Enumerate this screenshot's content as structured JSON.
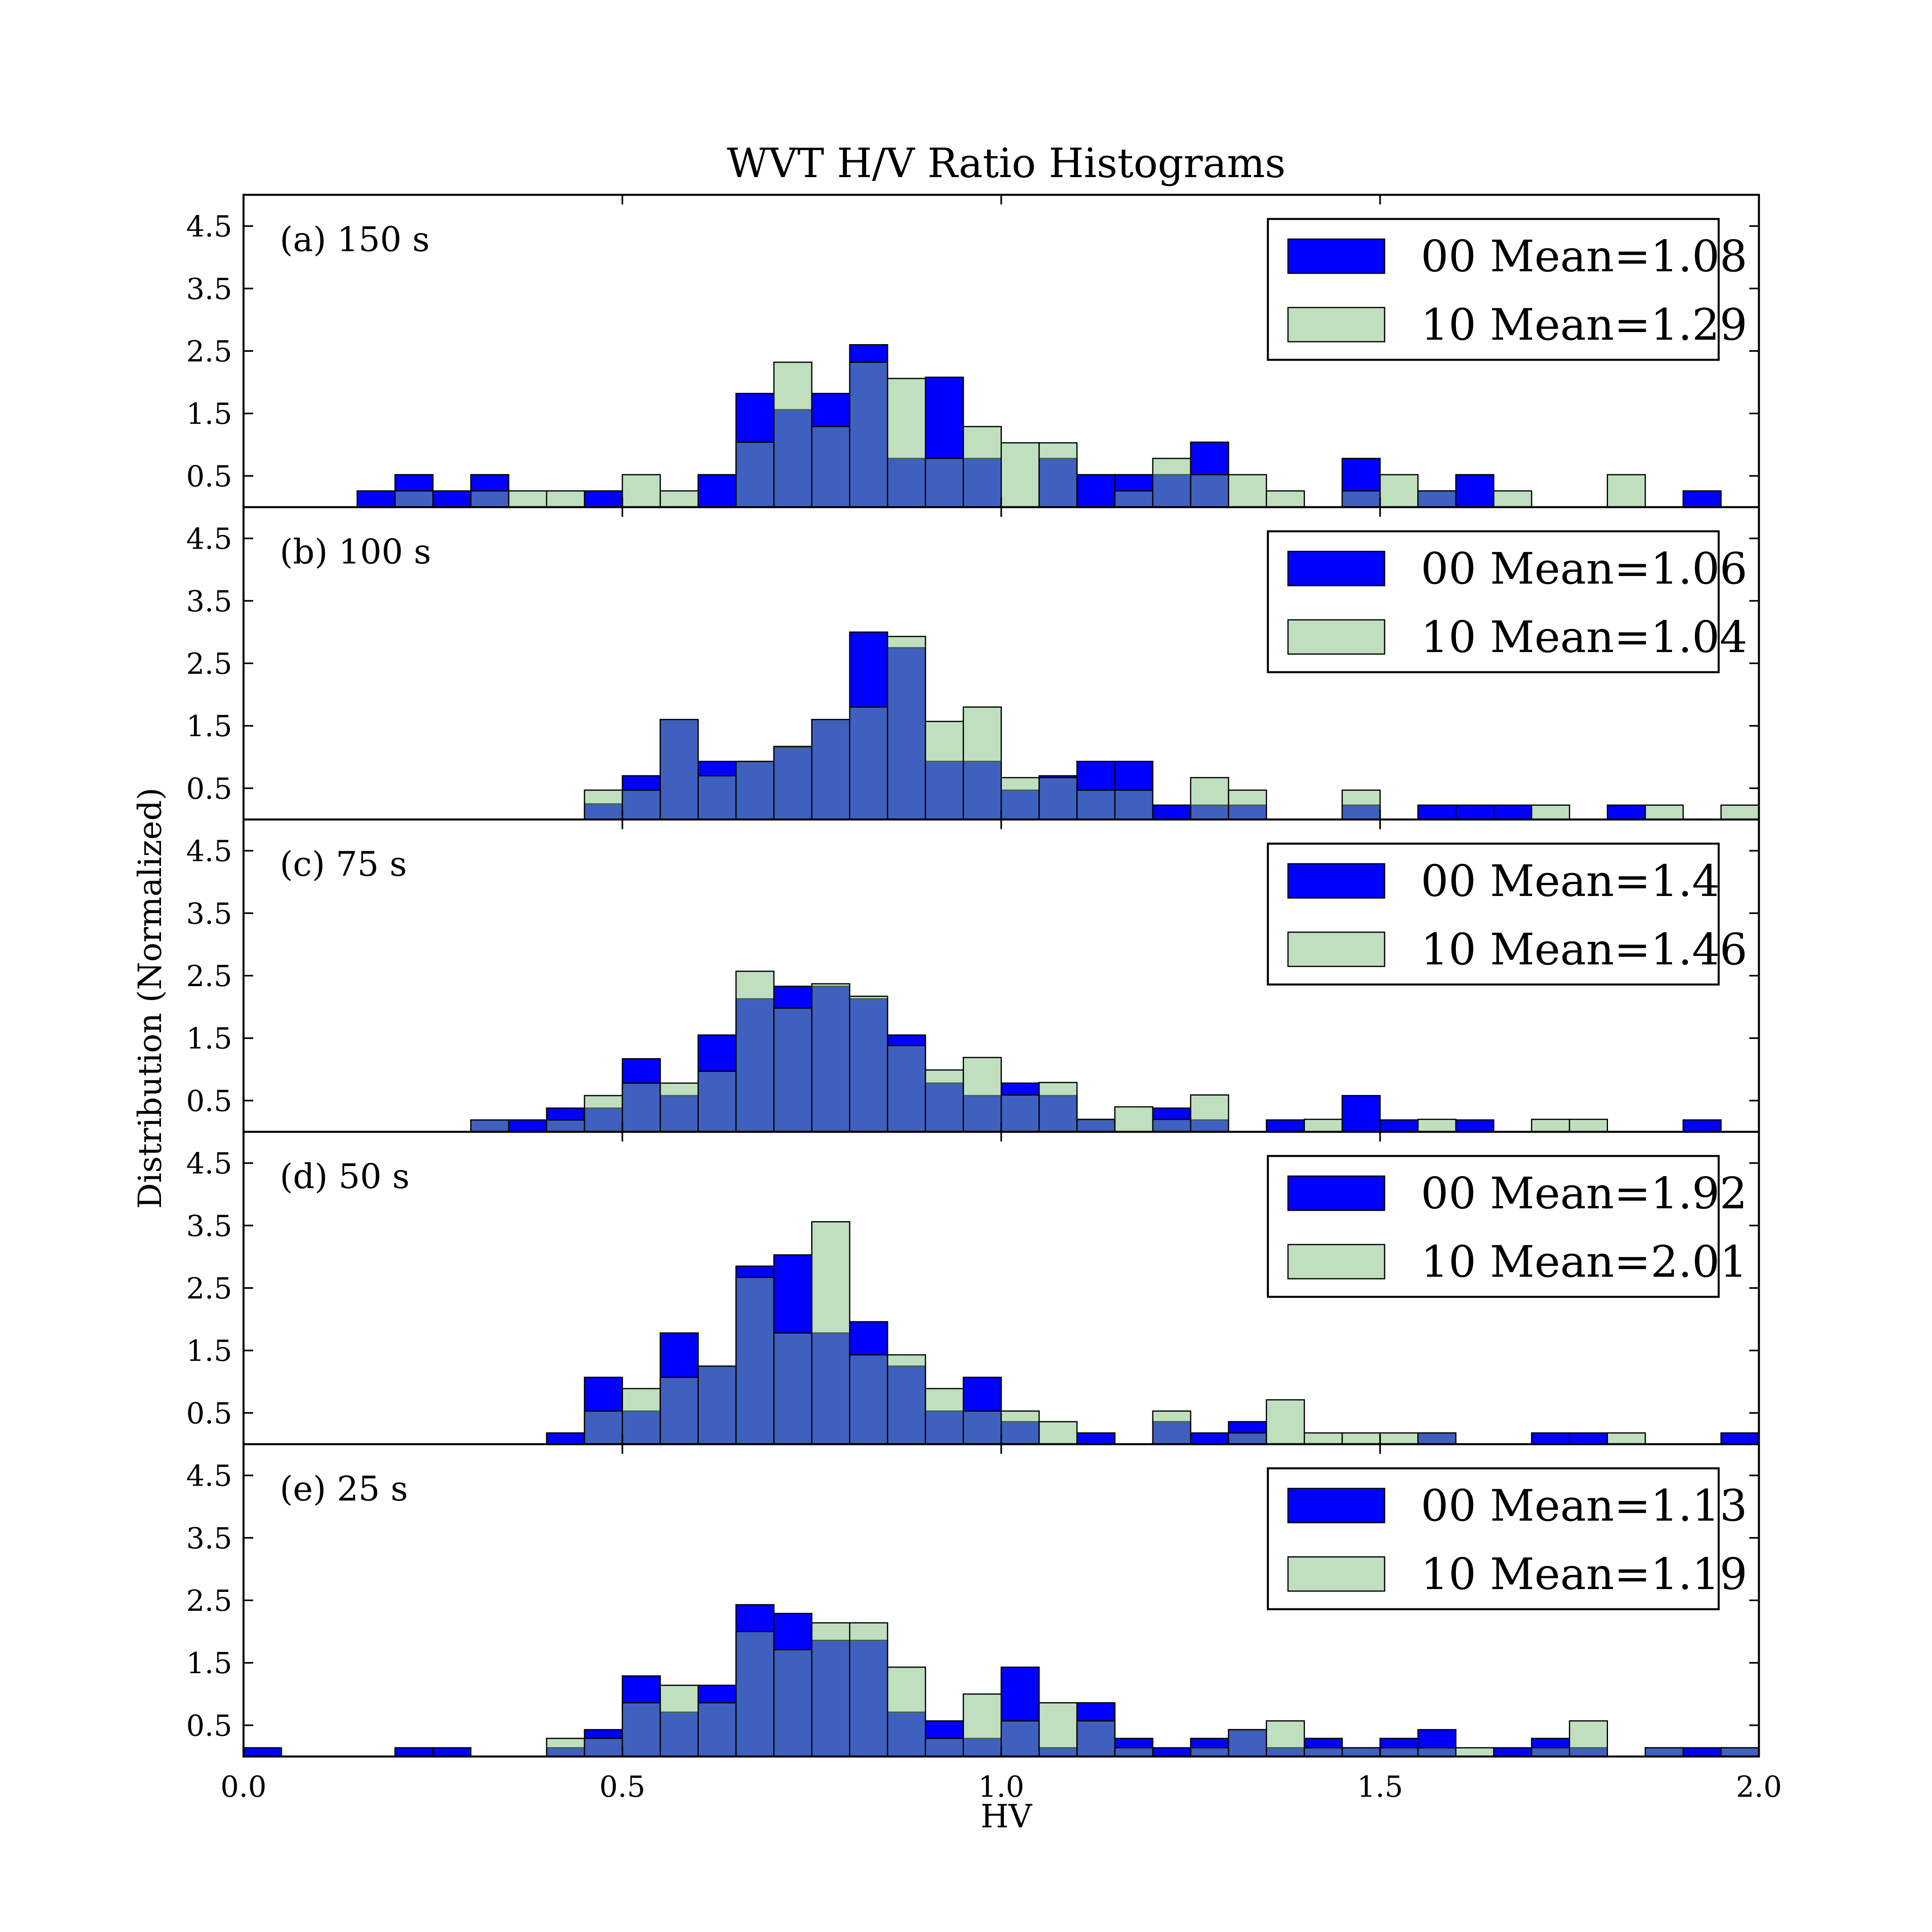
{
  "chart_data": {
    "type": "bar",
    "title": "WVT H/V Ratio Histograms",
    "xlabel": "HV",
    "ylabel": "Distribution (Normalized)",
    "xlim": [
      0.0,
      2.0
    ],
    "ylim": [
      0.0,
      5.0
    ],
    "bin_width": 0.05,
    "x_tick_labels": [
      "0.0",
      "0.5",
      "1.0",
      "1.5",
      "2.0"
    ],
    "x_ticks": [
      0.0,
      0.5,
      1.0,
      1.5,
      2.0
    ],
    "y_tick_labels": [
      "0.5",
      "1.5",
      "2.5",
      "3.5",
      "4.5"
    ],
    "y_ticks": [
      0.5,
      1.5,
      2.5,
      3.5,
      4.5
    ],
    "grid": false,
    "legend_position": "top-right",
    "colors": {
      "s00": "#0000ff",
      "s10": "#80c080",
      "overlap": "#004080",
      "edge": "#000000"
    },
    "panels": [
      {
        "label": "(a) 150 s",
        "series": [
          {
            "name": "00 Mean=1.08",
            "values": [
              0,
              0,
              0,
              0.26,
              0.52,
              0.26,
              0.52,
              0,
              0,
              0.26,
              0,
              0,
              0.52,
              1.82,
              1.56,
              1.82,
              2.6,
              0.78,
              2.08,
              0.78,
              0,
              0.78,
              0.52,
              0.52,
              0.52,
              1.04,
              0,
              0,
              0,
              0.78,
              0,
              0.26,
              0.52,
              0,
              0,
              0,
              0,
              0,
              0.26,
              0
            ]
          },
          {
            "name": "10 Mean=1.29",
            "values": [
              0,
              0,
              0,
              0,
              0.26,
              0,
              0.26,
              0.26,
              0.26,
              0,
              0.52,
              0.26,
              0,
              1.04,
              2.32,
              1.29,
              2.32,
              2.06,
              0.78,
              1.29,
              1.03,
              1.03,
              0,
              0.26,
              0.78,
              0.52,
              0.52,
              0.26,
              0,
              0.26,
              0.52,
              0.26,
              0,
              0.26,
              0,
              0,
              0.52,
              0,
              0,
              0
            ]
          }
        ]
      },
      {
        "label": "(b) 100 s",
        "series": [
          {
            "name": "00 Mean=1.06",
            "values": [
              0,
              0,
              0,
              0,
              0,
              0,
              0,
              0,
              0,
              0.25,
              0.7,
              1.6,
              0.93,
              0.93,
              1.15,
              1.6,
              3.0,
              2.75,
              0.93,
              0.93,
              0.47,
              0.7,
              0.93,
              0.93,
              0.23,
              0.23,
              0.23,
              0,
              0,
              0.23,
              0,
              0.23,
              0.23,
              0.23,
              0,
              0,
              0.23,
              0,
              0,
              0
            ]
          },
          {
            "name": "10 Mean=1.04",
            "values": [
              0,
              0,
              0,
              0,
              0,
              0,
              0,
              0,
              0,
              0.47,
              0.47,
              1.6,
              0.7,
              0.93,
              1.17,
              1.6,
              1.8,
              2.93,
              1.57,
              1.8,
              0.67,
              0.67,
              0.47,
              0.47,
              0,
              0.67,
              0.47,
              0,
              0,
              0.47,
              0,
              0,
              0,
              0,
              0.23,
              0,
              0,
              0.23,
              0,
              0.23
            ]
          }
        ]
      },
      {
        "label": "(c) 75 s",
        "series": [
          {
            "name": "00 Mean=1.4",
            "values": [
              0,
              0,
              0,
              0,
              0,
              0,
              0.19,
              0.19,
              0.38,
              0.38,
              1.17,
              0.58,
              1.55,
              2.13,
              2.33,
              2.33,
              2.13,
              1.55,
              0.78,
              0.58,
              0.78,
              0.58,
              0.19,
              0,
              0.38,
              0.19,
              0,
              0.19,
              0,
              0.58,
              0.19,
              0,
              0.19,
              0,
              0,
              0,
              0,
              0,
              0.19,
              0
            ]
          },
          {
            "name": "10 Mean=1.46",
            "values": [
              0,
              0,
              0,
              0,
              0,
              0,
              0.19,
              0,
              0.19,
              0.58,
              0.78,
              0.78,
              0.97,
              2.57,
              1.98,
              2.37,
              2.17,
              1.38,
              0.99,
              1.19,
              0.59,
              0.79,
              0.2,
              0.4,
              0.2,
              0.59,
              0,
              0,
              0.2,
              0,
              0,
              0.2,
              0,
              0,
              0.2,
              0.2,
              0,
              0,
              0,
              0
            ]
          }
        ]
      },
      {
        "label": "(d) 50 s",
        "series": [
          {
            "name": "00 Mean=1.92",
            "values": [
              0,
              0,
              0,
              0,
              0,
              0,
              0,
              0,
              0.18,
              1.07,
              0.53,
              1.78,
              1.25,
              2.85,
              3.03,
              1.78,
              1.96,
              1.25,
              0.53,
              1.07,
              0.36,
              0,
              0.18,
              0,
              0.36,
              0.18,
              0.36,
              0,
              0,
              0,
              0,
              0.18,
              0,
              0,
              0.18,
              0.18,
              0,
              0,
              0,
              0.18
            ]
          },
          {
            "name": "10 Mean=2.01",
            "values": [
              0,
              0,
              0,
              0,
              0,
              0,
              0,
              0,
              0,
              0.53,
              0.89,
              1.07,
              1.25,
              2.67,
              1.78,
              3.56,
              1.43,
              1.43,
              0.89,
              0.53,
              0.53,
              0.36,
              0,
              0,
              0.53,
              0,
              0.18,
              0.71,
              0.18,
              0.18,
              0.18,
              0.18,
              0,
              0,
              0,
              0,
              0.18,
              0,
              0,
              0
            ]
          }
        ]
      },
      {
        "label": "(e) 25 s",
        "series": [
          {
            "name": "00 Mean=1.13",
            "values": [
              0.14,
              0,
              0,
              0,
              0.14,
              0.14,
              0,
              0,
              0.14,
              0.43,
              1.29,
              0.71,
              1.14,
              2.43,
              2.29,
              1.86,
              1.86,
              0.71,
              0.57,
              0.29,
              1.43,
              0.14,
              0.86,
              0.29,
              0.14,
              0.29,
              0.43,
              0.14,
              0.29,
              0.14,
              0.29,
              0.43,
              0,
              0.14,
              0.29,
              0.14,
              0,
              0.14,
              0.14,
              0.14
            ]
          },
          {
            "name": "10 Mean=1.19",
            "values": [
              0,
              0,
              0,
              0,
              0,
              0,
              0,
              0,
              0.29,
              0.29,
              0.86,
              1.14,
              0.86,
              2.0,
              1.71,
              2.14,
              2.14,
              1.43,
              0.29,
              1.0,
              0.57,
              0.86,
              0.57,
              0.14,
              0,
              0.14,
              0.43,
              0.57,
              0.14,
              0.14,
              0.14,
              0.14,
              0.14,
              0,
              0.14,
              0.57,
              0,
              0.14,
              0,
              0.14
            ]
          }
        ]
      }
    ]
  }
}
